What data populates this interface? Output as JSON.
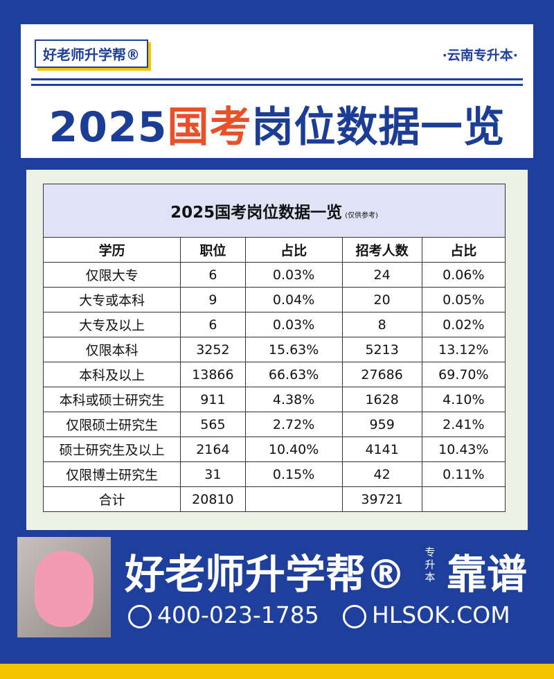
{
  "header": {
    "logo": "好老师升学帮®",
    "region": "·云南专升本·",
    "title": [
      "2025",
      "国考",
      "岗位数据一览"
    ]
  },
  "table": {
    "title": "2025国考岗位数据一览",
    "note": "(仅供参考)",
    "headers": [
      "学历",
      "职位",
      "占比",
      "招考人数",
      "占比"
    ],
    "rows": [
      [
        "仅限大专",
        "6",
        "0.03%",
        "24",
        "0.06%"
      ],
      [
        "大专或本科",
        "9",
        "0.04%",
        "20",
        "0.05%"
      ],
      [
        "大专及以上",
        "6",
        "0.03%",
        "8",
        "0.02%"
      ],
      [
        "仅限本科",
        "3252",
        "15.63%",
        "5213",
        "13.12%"
      ],
      [
        "本科及以上",
        "13866",
        "66.63%",
        "27686",
        "69.70%"
      ],
      [
        "本科或硕士研究生",
        "911",
        "4.38%",
        "1628",
        "4.10%"
      ],
      [
        "仅限硕士研究生",
        "565",
        "2.72%",
        "959",
        "2.41%"
      ],
      [
        "硕士研究生及以上",
        "2164",
        "10.40%",
        "4141",
        "10.43%"
      ],
      [
        "仅限博士研究生",
        "31",
        "0.15%",
        "42",
        "0.11%"
      ]
    ],
    "total": {
      "label": "合计",
      "jobs": "20810",
      "applicants": "39721"
    }
  },
  "footer": {
    "brand": "好老师升学帮®",
    "tag": "专升本",
    "slogan": "靠谱",
    "phone": "400-023-1785",
    "website": "HLSOK.COM"
  }
}
